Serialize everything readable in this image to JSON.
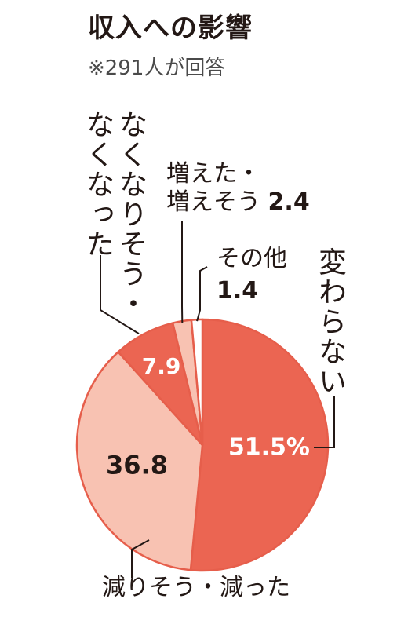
{
  "title": "収入への影響",
  "subtitle": "※291人が回答",
  "chart_data": {
    "type": "pie",
    "title": "収入への影響",
    "subtitle": "※291人が回答",
    "categories": [
      "変わらない",
      "減りそう・減った",
      "なくなりそう・なくなった",
      "増えた・増えそう",
      "その他"
    ],
    "values": [
      51.5,
      36.8,
      7.9,
      2.4,
      1.4
    ],
    "value_labels": [
      "51.5%",
      "36.8",
      "7.9",
      "2.4",
      "1.4"
    ],
    "colors": [
      "#eb6552",
      "#f8c2b2",
      "#eb6552",
      "#f8c2b2",
      "#ffffff"
    ],
    "outline_color": "#e65e4b",
    "label_colors": [
      "#ffffff",
      "#231815",
      "#ffffff",
      "#231815",
      "#231815"
    ],
    "start": "12 o'clock",
    "direction": "clockwise"
  },
  "labels": {
    "decrease_label": "減りそう・減った",
    "increase_line1": "増えた・",
    "increase_line2": "増えそう",
    "increase_value": "2.4",
    "other_label": "その他",
    "other_value": "1.4",
    "unchanged_label": "変わらない",
    "gone_col1": "なくなりそう・",
    "gone_col2": "なくなった"
  }
}
